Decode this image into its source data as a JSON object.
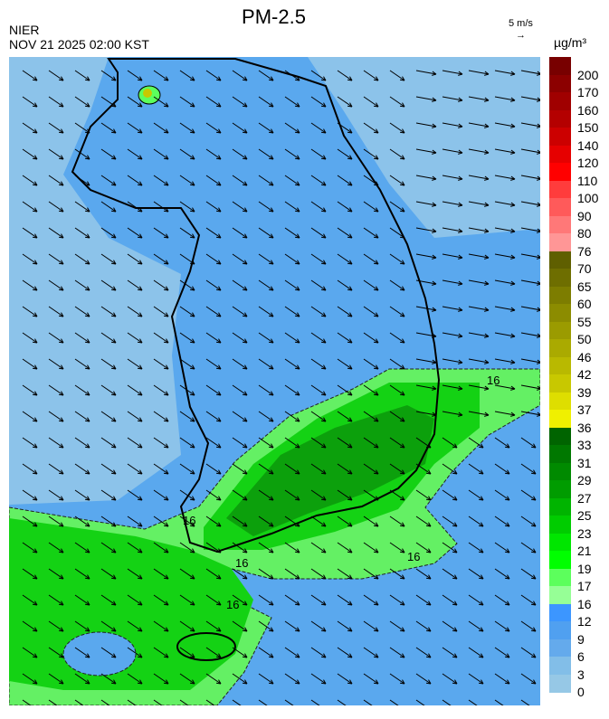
{
  "title": "PM-2.5",
  "org": "NIER",
  "timestamp": "NOV 21 2025 02:00 KST",
  "wind_reference": {
    "label": "5 m/s",
    "icon": "arrow-right-icon"
  },
  "unit": "µg/m³",
  "colorbar": {
    "labels": [
      "200",
      "170",
      "160",
      "150",
      "140",
      "120",
      "110",
      "100",
      "90",
      "80",
      "76",
      "70",
      "65",
      "60",
      "55",
      "50",
      "46",
      "42",
      "39",
      "37",
      "36",
      "33",
      "31",
      "29",
      "27",
      "25",
      "23",
      "21",
      "19",
      "17",
      "16",
      "12",
      "9",
      "6",
      "3",
      "0"
    ],
    "colors": [
      "#5c0000",
      "#780000",
      "#8c0000",
      "#a00000",
      "#b40000",
      "#cc0000",
      "#e60000",
      "#ff0000",
      "#ff3c3c",
      "#ff5a5a",
      "#ff7878",
      "#ff9696",
      "#5f5f00",
      "#6e6e00",
      "#7d7d00",
      "#8c8c00",
      "#9b9b00",
      "#aaaa00",
      "#b9b900",
      "#c8c800",
      "#dede00",
      "#f0f000",
      "#006400",
      "#007800",
      "#008a00",
      "#009c00",
      "#00b400",
      "#00cc00",
      "#00e600",
      "#00ff00",
      "#5cff5c",
      "#96ff96",
      "#3c96ff",
      "#50a0f0",
      "#64aaec",
      "#82bee8",
      "#96c8e6"
    ]
  },
  "map": {
    "contour_labels": [
      "16",
      "16",
      "16",
      "16",
      "16"
    ],
    "colors": {
      "sea_clean": "#8cc3ea",
      "land": "#5aa8ee",
      "green_light": "#64f064",
      "green": "#14d214",
      "green_dark": "#0ca00c"
    }
  }
}
